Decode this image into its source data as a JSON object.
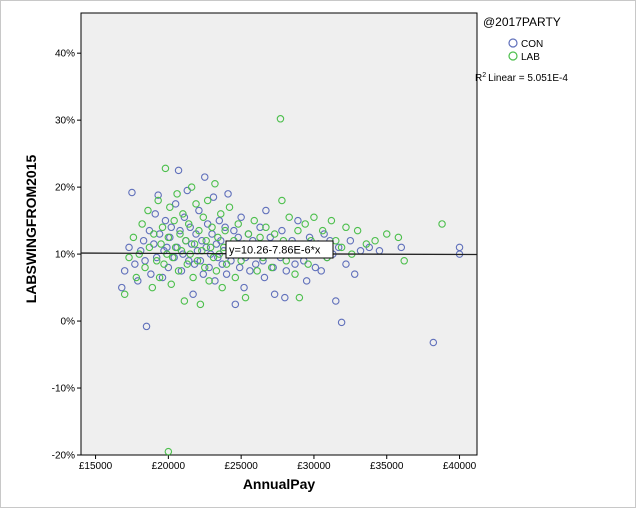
{
  "chart_data": {
    "type": "scatter",
    "title": "",
    "xlabel": "AnnualPay",
    "ylabel": "LABSWINGFROM2015",
    "xlim": [
      14000,
      41200
    ],
    "ylim": [
      -20,
      46
    ],
    "x_ticks": [
      {
        "value": 15000,
        "label": "£15000"
      },
      {
        "value": 20000,
        "label": "£20000"
      },
      {
        "value": 25000,
        "label": "£25000"
      },
      {
        "value": 30000,
        "label": "£30000"
      },
      {
        "value": 35000,
        "label": "£35000"
      },
      {
        "value": 40000,
        "label": "£40000"
      }
    ],
    "y_ticks": [
      {
        "value": 40,
        "label": "40%"
      },
      {
        "value": 30,
        "label": "30%"
      },
      {
        "value": 20,
        "label": "20%"
      },
      {
        "value": 10,
        "label": "10%"
      },
      {
        "value": 0,
        "label": "0%"
      },
      {
        "value": -10,
        "label": "-10%"
      },
      {
        "value": -20,
        "label": "-20%"
      }
    ],
    "grid": false,
    "legend": {
      "title": "@2017PARTY",
      "placement": "top-right",
      "r2_label": "Linear = 5.051E-4"
    },
    "fit_line": {
      "label": "y=10.26-7.86E-6*x",
      "intercept": 10.26,
      "slope": -7.86e-06,
      "color": "#222222"
    },
    "colors": {
      "plot_bg": "#efefef",
      "CON": "#6070bb",
      "LAB": "#4cbf4c"
    },
    "series": [
      {
        "name": "CON",
        "points": [
          [
            16800,
            5
          ],
          [
            17000,
            7.5
          ],
          [
            17300,
            11
          ],
          [
            17500,
            19.2
          ],
          [
            17700,
            8.5
          ],
          [
            17900,
            6
          ],
          [
            18100,
            10.5
          ],
          [
            18300,
            12
          ],
          [
            18400,
            9
          ],
          [
            18500,
            -0.8
          ],
          [
            18700,
            13.5
          ],
          [
            18800,
            7
          ],
          [
            19000,
            11.5
          ],
          [
            19100,
            16
          ],
          [
            19200,
            9.5
          ],
          [
            19300,
            18.8
          ],
          [
            19400,
            13
          ],
          [
            19600,
            6.5
          ],
          [
            19700,
            10.5
          ],
          [
            19800,
            15
          ],
          [
            19900,
            11
          ],
          [
            20000,
            8
          ],
          [
            20100,
            12.5
          ],
          [
            20200,
            14
          ],
          [
            20400,
            9.5
          ],
          [
            20500,
            17.5
          ],
          [
            20600,
            11
          ],
          [
            20700,
            22.5
          ],
          [
            20800,
            13.5
          ],
          [
            20900,
            7.5
          ],
          [
            21000,
            10
          ],
          [
            21100,
            15.5
          ],
          [
            21200,
            12
          ],
          [
            21300,
            19.5
          ],
          [
            21400,
            9
          ],
          [
            21500,
            14
          ],
          [
            21600,
            11.5
          ],
          [
            21700,
            4
          ],
          [
            21800,
            8.5
          ],
          [
            21900,
            13
          ],
          [
            22000,
            10.5
          ],
          [
            22100,
            16.5
          ],
          [
            22200,
            9
          ],
          [
            22300,
            12
          ],
          [
            22400,
            7
          ],
          [
            22500,
            21.5
          ],
          [
            22600,
            11
          ],
          [
            22700,
            14.5
          ],
          [
            22800,
            8
          ],
          [
            22900,
            10
          ],
          [
            23000,
            13
          ],
          [
            23100,
            18.5
          ],
          [
            23200,
            6
          ],
          [
            23300,
            11.5
          ],
          [
            23400,
            9.5
          ],
          [
            23500,
            15
          ],
          [
            23600,
            12
          ],
          [
            23700,
            8.5
          ],
          [
            23800,
            10.5
          ],
          [
            23900,
            14
          ],
          [
            24000,
            7
          ],
          [
            24100,
            19
          ],
          [
            24200,
            11
          ],
          [
            24300,
            9
          ],
          [
            24500,
            13.5
          ],
          [
            24600,
            2.5
          ],
          [
            24700,
            10
          ],
          [
            24800,
            12.5
          ],
          [
            24900,
            8
          ],
          [
            25000,
            15.5
          ],
          [
            25100,
            11
          ],
          [
            25200,
            5
          ],
          [
            25300,
            9.5
          ],
          [
            25500,
            13
          ],
          [
            25600,
            7.5
          ],
          [
            25700,
            10.5
          ],
          [
            25800,
            12
          ],
          [
            26000,
            8.5
          ],
          [
            26200,
            11.5
          ],
          [
            26300,
            14
          ],
          [
            26500,
            9
          ],
          [
            26600,
            6.5
          ],
          [
            26700,
            16.5
          ],
          [
            26800,
            10.5
          ],
          [
            27000,
            12.5
          ],
          [
            27200,
            8
          ],
          [
            27300,
            4
          ],
          [
            27500,
            11
          ],
          [
            27700,
            9.5
          ],
          [
            27800,
            13.5
          ],
          [
            28000,
            3.5
          ],
          [
            28100,
            7.5
          ],
          [
            28300,
            10
          ],
          [
            28500,
            12
          ],
          [
            28700,
            8.5
          ],
          [
            28900,
            15
          ],
          [
            29100,
            11
          ],
          [
            29300,
            9
          ],
          [
            29500,
            6
          ],
          [
            29700,
            12.5
          ],
          [
            29900,
            10.5
          ],
          [
            30100,
            8
          ],
          [
            30300,
            11.5
          ],
          [
            30500,
            7.5
          ],
          [
            30700,
            13
          ],
          [
            30900,
            9.5
          ],
          [
            31100,
            12
          ],
          [
            31300,
            10
          ],
          [
            31500,
            3
          ],
          [
            31700,
            11
          ],
          [
            31900,
            -0.2
          ],
          [
            32200,
            8.5
          ],
          [
            32500,
            12
          ],
          [
            32800,
            7
          ],
          [
            33200,
            10.5
          ],
          [
            33800,
            11
          ],
          [
            34500,
            10.5
          ],
          [
            36000,
            11
          ],
          [
            38200,
            -3.2
          ],
          [
            40000,
            10
          ],
          [
            40000,
            11
          ]
        ]
      },
      {
        "name": "LAB",
        "points": [
          [
            17000,
            4
          ],
          [
            17300,
            9.5
          ],
          [
            17600,
            12.5
          ],
          [
            17800,
            6.5
          ],
          [
            18000,
            10
          ],
          [
            18200,
            14.5
          ],
          [
            18400,
            8
          ],
          [
            18600,
            16.5
          ],
          [
            18700,
            11
          ],
          [
            18900,
            5
          ],
          [
            19000,
            13
          ],
          [
            19200,
            9
          ],
          [
            19300,
            18
          ],
          [
            19400,
            6.5
          ],
          [
            19500,
            11.5
          ],
          [
            19600,
            14
          ],
          [
            19700,
            8.5
          ],
          [
            19800,
            22.8
          ],
          [
            19900,
            10
          ],
          [
            20000,
            -19.5
          ],
          [
            20000,
            12.5
          ],
          [
            20100,
            17
          ],
          [
            20200,
            5.5
          ],
          [
            20300,
            9.5
          ],
          [
            20400,
            15
          ],
          [
            20500,
            11
          ],
          [
            20600,
            19
          ],
          [
            20700,
            7.5
          ],
          [
            20800,
            13
          ],
          [
            20900,
            10.5
          ],
          [
            21000,
            16
          ],
          [
            21100,
            3
          ],
          [
            21200,
            12
          ],
          [
            21300,
            8.5
          ],
          [
            21400,
            14.5
          ],
          [
            21500,
            10
          ],
          [
            21600,
            20
          ],
          [
            21700,
            6.5
          ],
          [
            21800,
            11.5
          ],
          [
            21900,
            17.5
          ],
          [
            22000,
            9
          ],
          [
            22100,
            13.5
          ],
          [
            22200,
            2.5
          ],
          [
            22300,
            10.5
          ],
          [
            22400,
            15.5
          ],
          [
            22500,
            8
          ],
          [
            22600,
            12
          ],
          [
            22700,
            18
          ],
          [
            22800,
            6
          ],
          [
            22900,
            11
          ],
          [
            23000,
            14
          ],
          [
            23100,
            9.5
          ],
          [
            23200,
            20.5
          ],
          [
            23300,
            7.5
          ],
          [
            23400,
            12.5
          ],
          [
            23500,
            10
          ],
          [
            23600,
            16
          ],
          [
            23700,
            5
          ],
          [
            23800,
            11
          ],
          [
            23900,
            13.5
          ],
          [
            24000,
            8.5
          ],
          [
            24200,
            17
          ],
          [
            24300,
            10.5
          ],
          [
            24500,
            12
          ],
          [
            24600,
            6.5
          ],
          [
            24800,
            14.5
          ],
          [
            25000,
            9
          ],
          [
            25200,
            11.5
          ],
          [
            25300,
            3.5
          ],
          [
            25500,
            13
          ],
          [
            25700,
            10
          ],
          [
            25900,
            15
          ],
          [
            26100,
            7.5
          ],
          [
            26300,
            12.5
          ],
          [
            26500,
            9.5
          ],
          [
            26700,
            14
          ],
          [
            26900,
            11
          ],
          [
            27100,
            8
          ],
          [
            27300,
            13
          ],
          [
            27500,
            10.5
          ],
          [
            27700,
            30.2
          ],
          [
            27800,
            18
          ],
          [
            27900,
            12
          ],
          [
            28100,
            9
          ],
          [
            28300,
            15.5
          ],
          [
            28500,
            11.5
          ],
          [
            28700,
            7
          ],
          [
            28900,
            13.5
          ],
          [
            29000,
            3.5
          ],
          [
            29200,
            10
          ],
          [
            29400,
            14.5
          ],
          [
            29600,
            8.5
          ],
          [
            29800,
            12
          ],
          [
            30000,
            15.5
          ],
          [
            30300,
            10.5
          ],
          [
            30600,
            13.5
          ],
          [
            30900,
            9.5
          ],
          [
            31200,
            15
          ],
          [
            31500,
            12
          ],
          [
            31900,
            11
          ],
          [
            32200,
            14
          ],
          [
            32600,
            10
          ],
          [
            33000,
            13.5
          ],
          [
            33600,
            11.5
          ],
          [
            34200,
            12
          ],
          [
            35000,
            13
          ],
          [
            35800,
            12.5
          ],
          [
            36200,
            9
          ],
          [
            38800,
            14.5
          ]
        ]
      }
    ]
  }
}
